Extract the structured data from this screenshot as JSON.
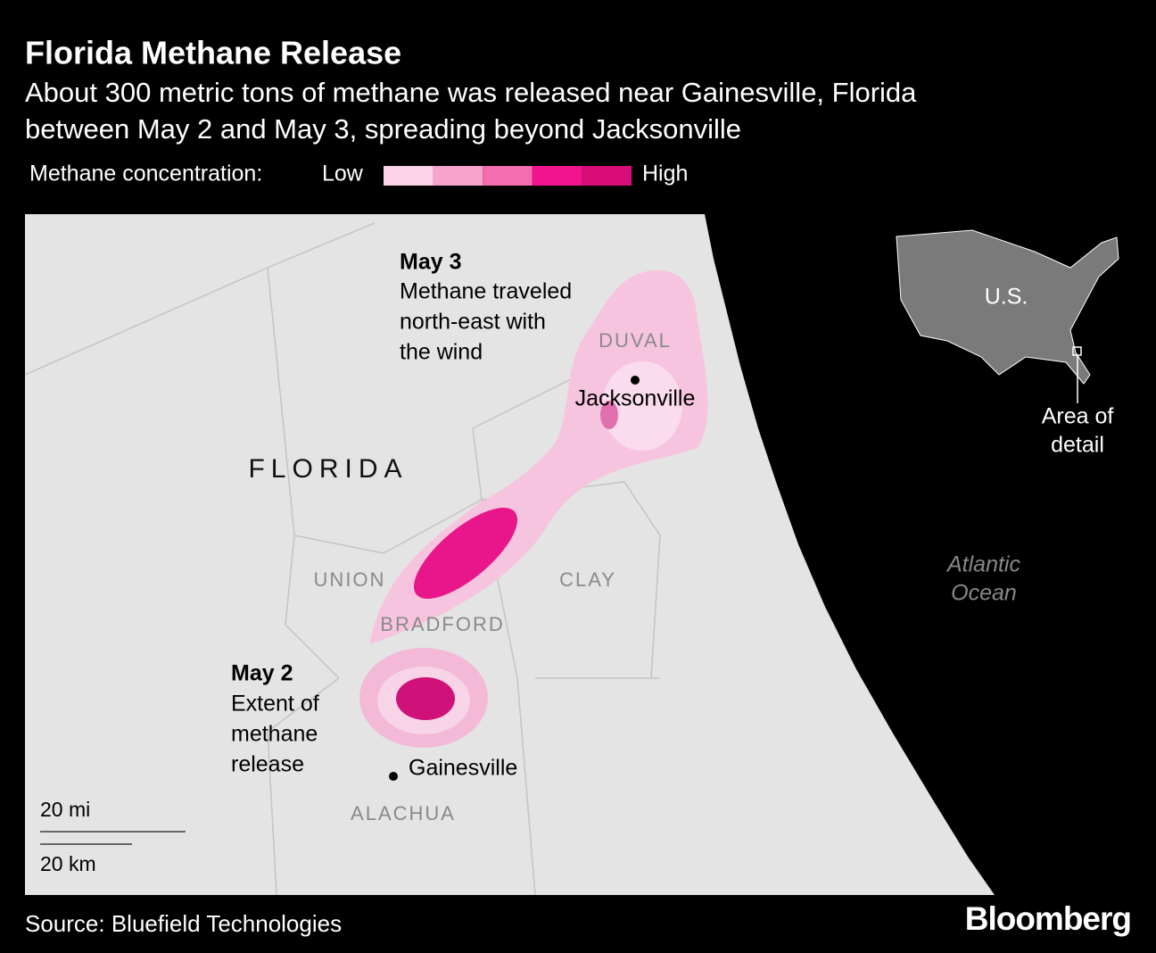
{
  "header": {
    "title": "Florida Methane Release",
    "subtitle": [
      "About 300 metric tons of methane was released near Gainesville, Florida",
      "between May 2 and May 3, spreading beyond Jacksonville"
    ]
  },
  "legend": {
    "label": "Methane concentration:",
    "low": "Low",
    "high": "High",
    "colors": [
      "#fbd3e6",
      "#f7a3cb",
      "#f46db0",
      "#f2138f",
      "#d90d78"
    ]
  },
  "map": {
    "state": "FLORIDA",
    "counties": [
      "DUVAL",
      "UNION",
      "CLAY",
      "BRADFORD",
      "ALACHUA"
    ],
    "cities": [
      "Jacksonville",
      "Gainesville"
    ],
    "annotations": [
      {
        "title": "May 3",
        "lines": [
          "Methane traveled",
          "north-east with",
          "the wind"
        ]
      },
      {
        "title": "May 2",
        "lines": [
          "Extent of",
          "methane",
          "release"
        ]
      }
    ],
    "ocean": [
      "Atlantic",
      "Ocean"
    ],
    "inset": {
      "label": "U.S.",
      "note": [
        "Area of",
        "detail"
      ]
    },
    "scale": [
      "20 mi",
      "20 km"
    ]
  },
  "footer": {
    "source": "Source: Bluefield Technologies",
    "logo": "Bloomberg"
  }
}
